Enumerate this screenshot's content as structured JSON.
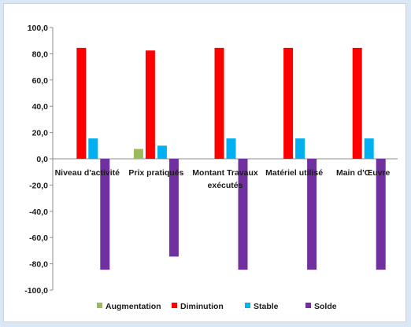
{
  "chart_data": {
    "type": "bar",
    "categories": [
      "Niveau d'activité",
      "Prix pratiqués",
      "Montant Travaux exécutés",
      "Matériel utilisé",
      "Main d'Œuvre"
    ],
    "series": [
      {
        "name": "Augmentation",
        "color": "#9bbb59",
        "values": [
          0,
          7.5,
          0,
          0,
          0
        ]
      },
      {
        "name": "Diminution",
        "color": "#ff0000",
        "values": [
          84.5,
          82.5,
          84.5,
          84.5,
          84.5
        ]
      },
      {
        "name": "Stable",
        "color": "#00b0f0",
        "values": [
          15.5,
          10,
          15.5,
          15.5,
          15.5
        ]
      },
      {
        "name": "Solde",
        "color": "#7030a0",
        "values": [
          -84.5,
          -74.5,
          -84.5,
          -84.5,
          -84.5
        ]
      }
    ],
    "ylim": [
      -100,
      100
    ],
    "yticks": [
      "100,0",
      "80,0",
      "60,0",
      "40,0",
      "20,0",
      "0,0",
      "-20,0",
      "-40,0",
      "-60,0",
      "-80,0",
      "-100,0"
    ],
    "grid": false,
    "legend_position": "bottom",
    "title": "",
    "xlabel": "",
    "ylabel": ""
  }
}
